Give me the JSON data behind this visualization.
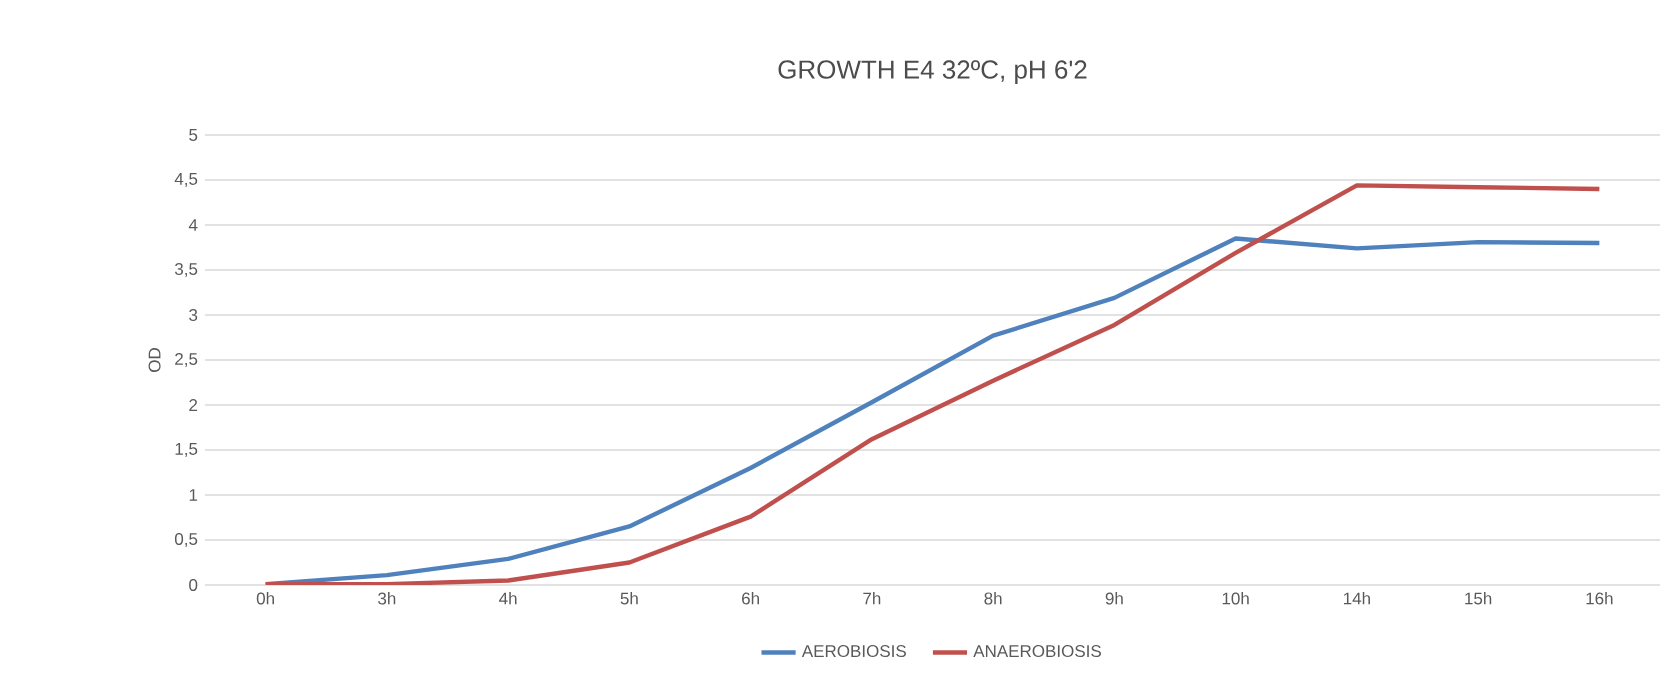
{
  "chart_data": {
    "type": "line",
    "title": "GROWTH E4 32ºC, pH 6'2",
    "ylabel": "OD",
    "categories": [
      "0h",
      "3h",
      "4h",
      "5h",
      "6h",
      "7h",
      "8h",
      "9h",
      "10h",
      "14h",
      "15h",
      "16h"
    ],
    "series": [
      {
        "name": "AEROBIOSIS",
        "color": "#4f81bd",
        "values": [
          0.01,
          0.11,
          0.29,
          0.65,
          1.3,
          2.03,
          2.77,
          3.19,
          3.85,
          3.74,
          3.81,
          3.8
        ]
      },
      {
        "name": "ANAEROBIOSIS",
        "color": "#c0504d",
        "values": [
          0.01,
          0.01,
          0.05,
          0.25,
          0.76,
          1.62,
          2.27,
          2.89,
          3.69,
          4.44,
          4.42,
          4.4
        ]
      }
    ],
    "ylim": [
      0,
      5
    ],
    "yticks": [
      0,
      {
        "value": 0.5,
        "label": "0,5"
      },
      1,
      {
        "value": 1.5,
        "label": "1,5"
      },
      2,
      {
        "value": 2.5,
        "label": "2,5"
      },
      3,
      {
        "value": 3.5,
        "label": "3,5"
      },
      4,
      {
        "value": 4.5,
        "label": "4,5"
      },
      5
    ],
    "grid": "y",
    "legend": "bottom",
    "marker": "none",
    "line_style": "solid"
  }
}
